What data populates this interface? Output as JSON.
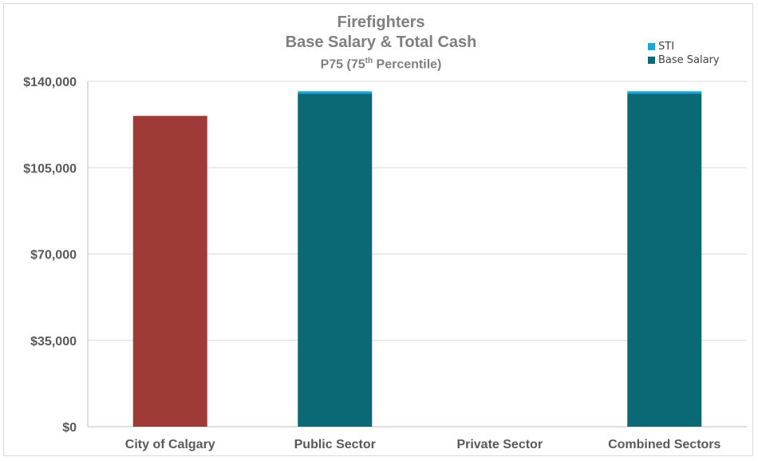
{
  "chart_data": {
    "type": "bar",
    "stacked": true,
    "title": "Firefighters",
    "subtitle": "Base Salary & Total Cash",
    "subtitle2_pre": "P75 (75",
    "subtitle2_sup": "th",
    "subtitle2_post": " Percentile)",
    "categories": [
      "City of Calgary",
      "Public Sector",
      "Private Sector",
      "Combined Sectors"
    ],
    "series": [
      {
        "name": "Base Salary",
        "color": "#0b6875",
        "values": [
          126000,
          135000,
          0,
          135000
        ]
      },
      {
        "name": "STI",
        "color": "#1aa7dc",
        "values": [
          0,
          1000,
          0,
          1000
        ]
      }
    ],
    "highlight": {
      "category": "City of Calgary",
      "color": "#9e3b37"
    },
    "ylim": [
      0,
      140000
    ],
    "yticks": [
      0,
      35000,
      70000,
      105000,
      140000
    ],
    "ytick_labels": [
      "$0",
      "$35,000",
      "$70,000",
      "$105,000",
      "$140,000"
    ],
    "grid": true,
    "legend_position": "top-right",
    "legend": [
      "STI",
      "Base Salary"
    ]
  }
}
